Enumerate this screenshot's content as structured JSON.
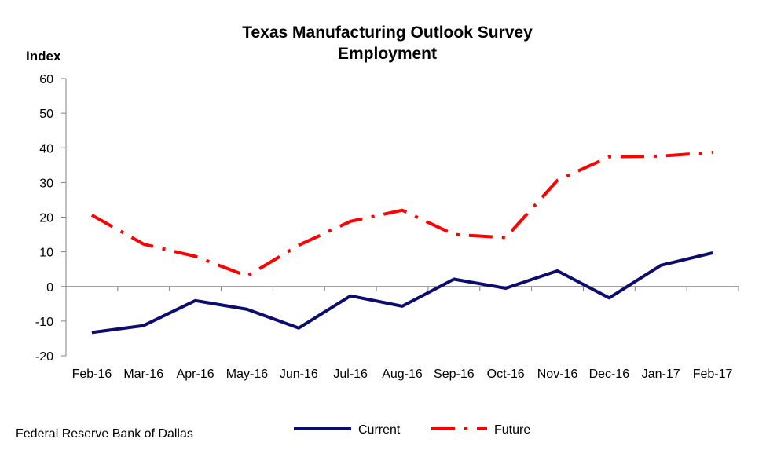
{
  "chart_data": {
    "type": "line",
    "title": "Texas Manufacturing Outlook Survey",
    "subtitle": "Employment",
    "ylabel": "Index",
    "xlabel": "",
    "ylim": [
      -20,
      60
    ],
    "yticks": [
      60,
      50,
      40,
      30,
      20,
      10,
      0,
      -10,
      -20
    ],
    "categories": [
      "Feb-16",
      "Mar-16",
      "Apr-16",
      "May-16",
      "Jun-16",
      "Jul-16",
      "Aug-16",
      "Sep-16",
      "Oct-16",
      "Nov-16",
      "Dec-16",
      "Jan-17",
      "Feb-17"
    ],
    "series": [
      {
        "name": "Current",
        "color": "#0c0c6e",
        "style": "solid",
        "values": [
          -13.3,
          -11.3,
          -4.1,
          -6.6,
          -12.0,
          -2.7,
          -5.7,
          2.1,
          -0.5,
          4.5,
          -3.3,
          6.1,
          9.7
        ]
      },
      {
        "name": "Future",
        "color": "#ff0000",
        "style": "dash-dot",
        "values": [
          20.6,
          12.2,
          8.7,
          3.0,
          11.9,
          18.8,
          22.0,
          15.0,
          14.1,
          30.6,
          37.4,
          37.6,
          38.7
        ]
      }
    ],
    "legend_position": "bottom-center",
    "grid": false
  },
  "source": "Federal Reserve Bank of Dallas"
}
